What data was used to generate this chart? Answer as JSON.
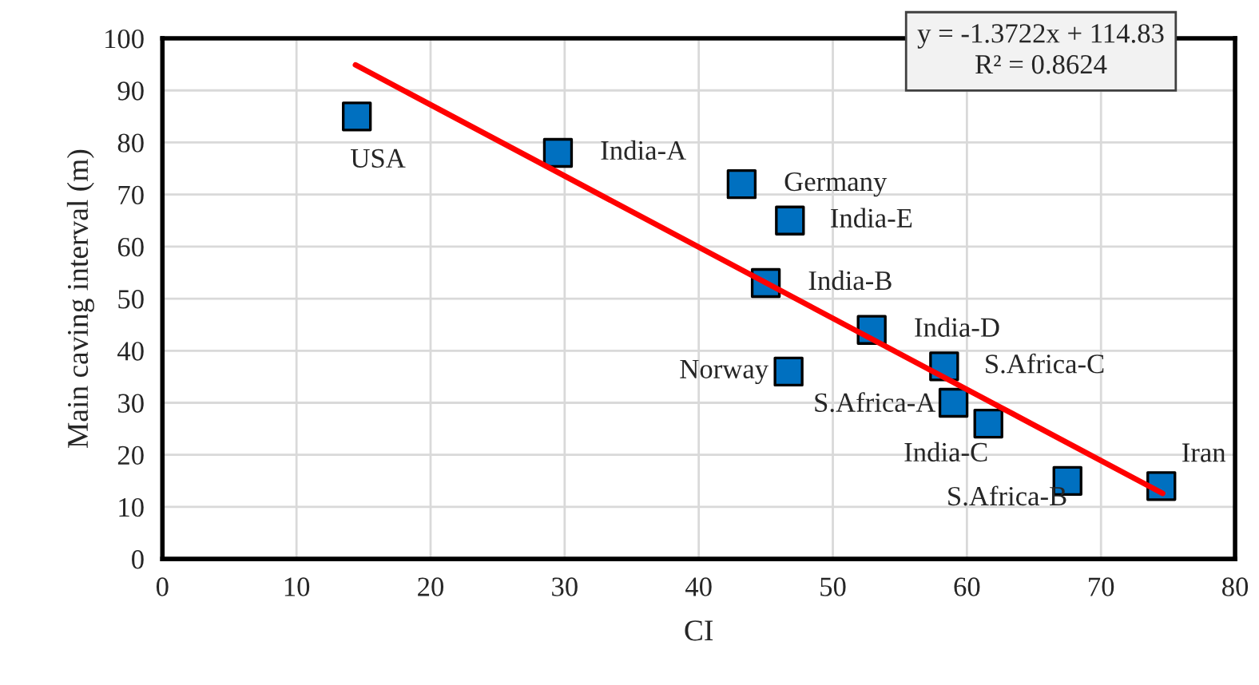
{
  "chart_data": {
    "type": "scatter",
    "xlabel": "CI",
    "ylabel": "Main caving interval (m)",
    "xlim": [
      0,
      80
    ],
    "xticks": [
      0,
      10,
      20,
      30,
      40,
      50,
      60,
      70,
      80
    ],
    "ylim": [
      0,
      100
    ],
    "yticks": [
      0,
      10,
      20,
      30,
      40,
      50,
      60,
      70,
      80,
      90,
      100
    ],
    "grid": true,
    "marker": "square",
    "series": [
      {
        "color": "#0070c0",
        "x": [
          14.5,
          29.5,
          43.2,
          46.8,
          45.0,
          52.9,
          46.7,
          58.3,
          59.0,
          61.6,
          67.5,
          74.5
        ],
        "values": [
          85,
          78,
          72,
          65,
          53,
          44,
          36,
          37,
          30,
          26,
          15,
          14
        ]
      },
      {
        "type": "line",
        "color": "#ff0000",
        "marker": "none",
        "line_style": "solid",
        "x": [
          14.4,
          74.6
        ],
        "values": [
          94.9,
          12.6
        ]
      }
    ],
    "annotations": [
      {
        "text": "USA",
        "x": 14.5,
        "y": 85
      },
      {
        "text": "India-A",
        "x": 29.5,
        "y": 78
      },
      {
        "text": "Germany",
        "x": 43.2,
        "y": 72
      },
      {
        "text": "India-E",
        "x": 46.8,
        "y": 65
      },
      {
        "text": "India-B",
        "x": 45.0,
        "y": 53
      },
      {
        "text": "India-D",
        "x": 52.9,
        "y": 44
      },
      {
        "text": "Norway",
        "x": 46.7,
        "y": 36
      },
      {
        "text": "S.Africa-C",
        "x": 58.3,
        "y": 37
      },
      {
        "text": "S.Africa-A",
        "x": 59.0,
        "y": 30
      },
      {
        "text": "India-C",
        "x": 61.6,
        "y": 26
      },
      {
        "text": "S.Africa-B",
        "x": 67.5,
        "y": 15
      },
      {
        "text": "Iran",
        "x": 74.5,
        "y": 14
      },
      "y = -1.3722x + 114.83\nR² = 0.8624"
    ]
  }
}
